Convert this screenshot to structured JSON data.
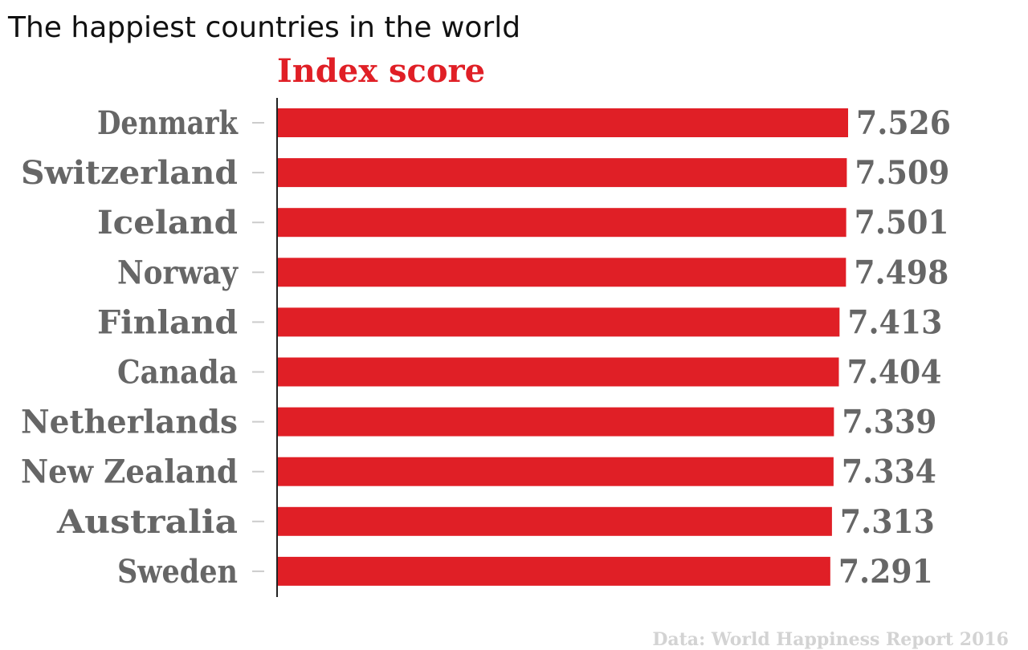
{
  "colors": {
    "bar": "#e01f26",
    "label": "#666666",
    "title": "#111111",
    "source": "#d3d3d3"
  },
  "chart_data": {
    "type": "bar",
    "orientation": "horizontal",
    "title": "The happiest countries in the world",
    "series_header": "Index score",
    "source": "Data: World Happiness Report 2016",
    "categories": [
      "Denmark",
      "Switzerland",
      "Iceland",
      "Norway",
      "Finland",
      "Canada",
      "Netherlands",
      "New Zealand",
      "Australia",
      "Sweden"
    ],
    "values": [
      7.526,
      7.509,
      7.501,
      7.498,
      7.413,
      7.404,
      7.339,
      7.334,
      7.313,
      7.291
    ],
    "value_labels": [
      "7.526",
      "7.509",
      "7.501",
      "7.498",
      "7.413",
      "7.404",
      "7.339",
      "7.334",
      "7.313",
      "7.291"
    ],
    "xlim": [
      0,
      7.526
    ],
    "grid": false,
    "legend": "none"
  }
}
